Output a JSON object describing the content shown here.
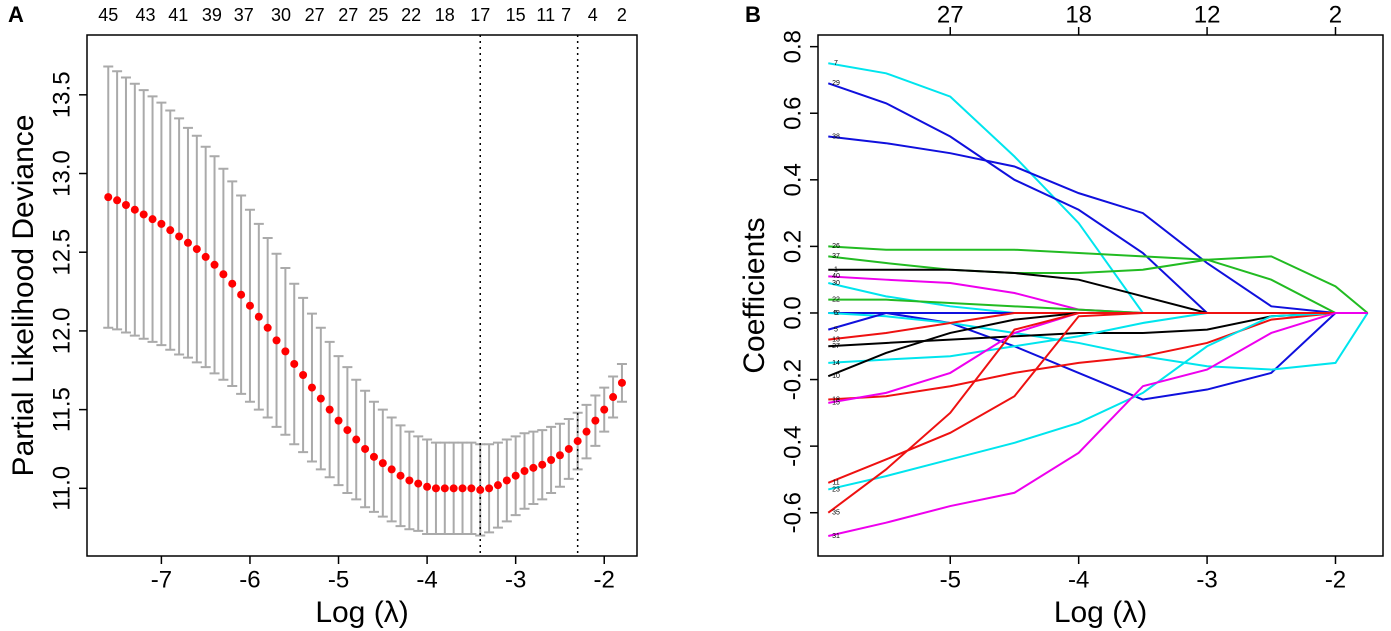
{
  "chart_data": [
    {
      "type": "errorbar",
      "label": "A",
      "xlabel": "Log (λ)",
      "ylabel": "Partial Likelihood Deviance",
      "point_color": "#ff0000",
      "errorbar_color": "#aaaaaa",
      "x": [
        -7.6,
        -7.5,
        -7.4,
        -7.3,
        -7.2,
        -7.1,
        -7.0,
        -6.9,
        -6.8,
        -6.7,
        -6.6,
        -6.5,
        -6.4,
        -6.3,
        -6.2,
        -6.1,
        -6.0,
        -5.9,
        -5.8,
        -5.7,
        -5.6,
        -5.5,
        -5.4,
        -5.3,
        -5.2,
        -5.1,
        -5.0,
        -4.9,
        -4.8,
        -4.7,
        -4.6,
        -4.5,
        -4.4,
        -4.3,
        -4.2,
        -4.1,
        -4.0,
        -3.9,
        -3.8,
        -3.7,
        -3.6,
        -3.5,
        -3.4,
        -3.3,
        -3.2,
        -3.1,
        -3.0,
        -2.9,
        -2.8,
        -2.7,
        -2.6,
        -2.5,
        -2.4,
        -2.3,
        -2.2,
        -2.1,
        -2.0,
        -1.9,
        -1.8
      ],
      "values": [
        12.85,
        12.83,
        12.8,
        12.77,
        12.74,
        12.71,
        12.68,
        12.64,
        12.6,
        12.56,
        12.52,
        12.47,
        12.42,
        12.36,
        12.3,
        12.23,
        12.16,
        12.09,
        12.02,
        11.94,
        11.87,
        11.79,
        11.72,
        11.64,
        11.57,
        11.5,
        11.43,
        11.37,
        11.31,
        11.25,
        11.2,
        11.16,
        11.12,
        11.08,
        11.05,
        11.03,
        11.01,
        11.0,
        11.0,
        11.0,
        11.0,
        11.0,
        10.99,
        11.0,
        11.02,
        11.05,
        11.08,
        11.11,
        11.13,
        11.15,
        11.18,
        11.21,
        11.25,
        11.3,
        11.36,
        11.43,
        11.5,
        11.58,
        11.67
      ],
      "errors": [
        0.83,
        0.82,
        0.81,
        0.8,
        0.79,
        0.78,
        0.77,
        0.76,
        0.75,
        0.73,
        0.72,
        0.7,
        0.69,
        0.67,
        0.65,
        0.63,
        0.61,
        0.59,
        0.57,
        0.55,
        0.53,
        0.51,
        0.49,
        0.47,
        0.45,
        0.43,
        0.41,
        0.4,
        0.38,
        0.37,
        0.35,
        0.34,
        0.33,
        0.32,
        0.31,
        0.3,
        0.3,
        0.29,
        0.29,
        0.29,
        0.29,
        0.29,
        0.29,
        0.28,
        0.27,
        0.26,
        0.25,
        0.24,
        0.23,
        0.22,
        0.21,
        0.2,
        0.19,
        0.18,
        0.17,
        0.16,
        0.14,
        0.13,
        0.12
      ],
      "vlines": [
        -3.4,
        -2.3
      ],
      "xlim": [
        -7.84,
        -1.63
      ],
      "xticks": [
        -7,
        -6,
        -5,
        -4,
        -3,
        -2
      ],
      "x2ticks": [
        {
          "value": -7.6,
          "label": "45"
        },
        {
          "value": -7.18,
          "label": "43"
        },
        {
          "value": -6.81,
          "label": "41"
        },
        {
          "value": -6.43,
          "label": "39"
        },
        {
          "value": -6.07,
          "label": "37"
        },
        {
          "value": -5.65,
          "label": "30"
        },
        {
          "value": -5.27,
          "label": "27"
        },
        {
          "value": -4.89,
          "label": "27"
        },
        {
          "value": -4.55,
          "label": "25"
        },
        {
          "value": -4.18,
          "label": "22"
        },
        {
          "value": -3.8,
          "label": "18"
        },
        {
          "value": -3.4,
          "label": "17"
        },
        {
          "value": -3.0,
          "label": "15"
        },
        {
          "value": -2.66,
          "label": "11"
        },
        {
          "value": -2.43,
          "label": "7"
        },
        {
          "value": -2.13,
          "label": "4"
        },
        {
          "value": -1.8,
          "label": "2"
        }
      ],
      "ylim": [
        10.57,
        13.88
      ],
      "yticks": [
        {
          "value": 11,
          "label": "11.0"
        },
        11.5,
        {
          "value": 12,
          "label": "12.0"
        },
        12.5,
        {
          "value": 13,
          "label": "13.0"
        },
        13.5
      ]
    },
    {
      "type": "line",
      "label": "B",
      "xlabel": "Log (λ)",
      "ylabel": "Coefficients",
      "x": [
        -5.95,
        -5.5,
        -5.0,
        -4.5,
        -4.0,
        -3.5,
        -3.0,
        -2.5,
        -2.0,
        -1.75
      ],
      "series": [
        {
          "name": "7",
          "color": "#00e5ee",
          "values": [
            0.75,
            0.72,
            0.65,
            0.47,
            0.27,
            0,
            0,
            0,
            0,
            0
          ]
        },
        {
          "name": "29",
          "color": "#1010dd",
          "values": [
            0.69,
            0.63,
            0.53,
            0.4,
            0.31,
            0.18,
            0,
            0,
            0,
            0
          ]
        },
        {
          "name": "38",
          "color": "#1010dd",
          "values": [
            0.53,
            0.51,
            0.48,
            0.44,
            0.36,
            0.3,
            0.15,
            0.02,
            0,
            0
          ]
        },
        {
          "name": "26",
          "color": "#22bb22",
          "values": [
            0.2,
            0.19,
            0.19,
            0.19,
            0.18,
            0.17,
            0.16,
            0.1,
            0,
            0
          ]
        },
        {
          "name": "37",
          "color": "#22bb22",
          "values": [
            0.17,
            0.15,
            0.13,
            0.12,
            0.12,
            0.13,
            0.16,
            0.17,
            0.08,
            0
          ]
        },
        {
          "name": "1",
          "color": "#000000",
          "values": [
            0.13,
            0.13,
            0.13,
            0.12,
            0.1,
            0.05,
            0,
            0,
            0,
            0
          ]
        },
        {
          "name": "40",
          "color": "#ee00ee",
          "values": [
            0.11,
            0.1,
            0.09,
            0.06,
            0.01,
            0,
            0,
            0,
            0,
            0
          ]
        },
        {
          "name": "30",
          "color": "#00e5ee",
          "values": [
            0.09,
            0.05,
            0.02,
            0,
            0,
            0,
            0,
            0,
            0,
            0
          ]
        },
        {
          "name": "22",
          "color": "#22bb22",
          "values": [
            0.04,
            0.04,
            0.03,
            0.02,
            0.01,
            0,
            0,
            0,
            0,
            0
          ]
        },
        {
          "name": "48",
          "color": "#1010dd",
          "values": [
            0,
            0,
            -0.03,
            -0.1,
            -0.18,
            -0.26,
            -0.23,
            -0.18,
            0,
            0
          ]
        },
        {
          "name": "6",
          "color": "#00e5ee",
          "values": [
            0,
            -0.01,
            -0.03,
            -0.06,
            -0.09,
            -0.13,
            -0.16,
            -0.17,
            -0.15,
            0
          ]
        },
        {
          "name": "5",
          "color": "#1010dd",
          "values": [
            -0.05,
            0,
            0,
            0,
            0,
            0,
            0,
            0,
            0,
            0
          ]
        },
        {
          "name": "13",
          "color": "#ee1111",
          "values": [
            -0.08,
            -0.06,
            -0.03,
            0,
            0,
            0,
            0,
            0,
            0,
            0
          ]
        },
        {
          "name": "27",
          "color": "#000000",
          "values": [
            -0.1,
            -0.09,
            -0.08,
            -0.07,
            -0.06,
            -0.06,
            -0.05,
            -0.01,
            0,
            0
          ]
        },
        {
          "name": "14",
          "color": "#00e5ee",
          "values": [
            -0.15,
            -0.14,
            -0.13,
            -0.1,
            -0.07,
            -0.03,
            0,
            0,
            0,
            0
          ]
        },
        {
          "name": "10",
          "color": "#000000",
          "values": [
            -0.19,
            -0.12,
            -0.06,
            -0.02,
            0,
            0,
            0,
            0,
            0,
            0
          ]
        },
        {
          "name": "18",
          "color": "#ee1111",
          "values": [
            -0.26,
            -0.25,
            -0.22,
            -0.18,
            -0.15,
            -0.13,
            -0.09,
            -0.02,
            0,
            0
          ]
        },
        {
          "name": "15",
          "color": "#ee00ee",
          "values": [
            -0.27,
            -0.24,
            -0.18,
            -0.06,
            0,
            0,
            0,
            0,
            0,
            0
          ]
        },
        {
          "name": "11",
          "color": "#ee1111",
          "values": [
            -0.51,
            -0.44,
            -0.36,
            -0.25,
            -0.01,
            0,
            0,
            0,
            0,
            0
          ]
        },
        {
          "name": "23",
          "color": "#00e5ee",
          "values": [
            -0.53,
            -0.49,
            -0.44,
            -0.39,
            -0.33,
            -0.24,
            -0.1,
            -0.01,
            0,
            0
          ]
        },
        {
          "name": "35",
          "color": "#ee1111",
          "values": [
            -0.6,
            -0.47,
            -0.3,
            -0.05,
            0,
            0,
            0,
            0,
            0,
            0
          ]
        },
        {
          "name": "31",
          "color": "#ee00ee",
          "values": [
            -0.67,
            -0.63,
            -0.58,
            -0.54,
            -0.42,
            -0.22,
            -0.17,
            -0.06,
            0,
            0
          ]
        }
      ],
      "xlim": [
        -6.03,
        -1.63
      ],
      "xticks": [
        -5,
        -4,
        -3,
        -2
      ],
      "x2ticks": [
        {
          "value": -5,
          "label": "27"
        },
        {
          "value": -4,
          "label": "18"
        },
        {
          "value": -3,
          "label": "12"
        },
        {
          "value": -2,
          "label": "2"
        }
      ],
      "ylim": [
        -0.73,
        0.835
      ],
      "yticks": [
        0.8,
        0.6,
        0.4,
        0.2,
        {
          "value": 0,
          "label": "0.0"
        },
        -0.2,
        -0.4,
        -0.6
      ]
    }
  ]
}
